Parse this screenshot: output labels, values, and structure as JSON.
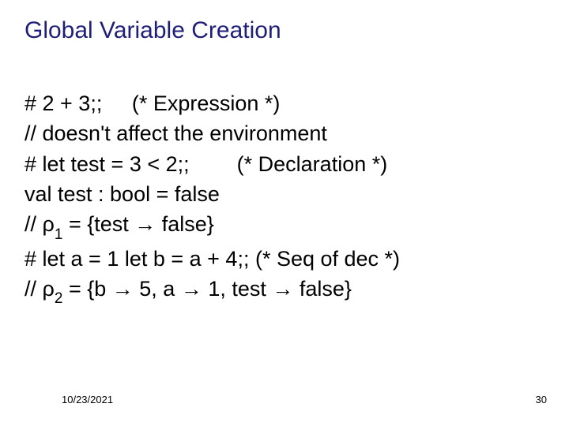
{
  "colors": {
    "title": "#1f1f7a",
    "body": "#000000",
    "background": "#ffffff"
  },
  "fonts": {
    "title_size_pt": 30,
    "body_size_pt": 27,
    "subscript_size_pt": 19,
    "footer_size_pt": 13,
    "family": "Arial"
  },
  "title": "Global Variable Creation",
  "lines": {
    "l1_a": "# 2 + 3;;",
    "l1_b": "(* Expression *)",
    "l2": "// doesn't affect the environment",
    "l3_a": "# let test = 3 < 2;;",
    "l3_b": "(* Declaration *)",
    "l4": "val test : bool = false",
    "l5_a": "//  ",
    "l5_rho": "ρ",
    "l5_sub": "1",
    "l5_b": " = {test ",
    "l5_arrow": "→",
    "l5_c": " false}",
    "l6": "# let a = 1 let b = a + 4;; (* Seq of dec *)",
    "l7_a": "//  ",
    "l7_rho": "ρ",
    "l7_sub": "2",
    "l7_b": " = {b ",
    "l7_arrow1": "→",
    "l7_c": " 5, a ",
    "l7_arrow2": "→",
    "l7_d": " 1, test ",
    "l7_arrow3": "→",
    "l7_e": " false}"
  },
  "footer": {
    "date": "10/23/2021",
    "page": "30"
  }
}
